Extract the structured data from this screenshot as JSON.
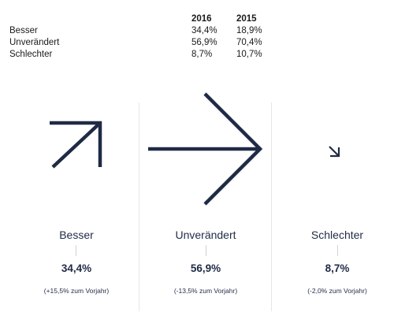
{
  "table": {
    "header": [
      "",
      "2016",
      "2015"
    ],
    "rows": [
      {
        "label": "Besser",
        "v2016": "34,4%",
        "v2015": "18,9%"
      },
      {
        "label": "Unverändert",
        "v2016": "56,9%",
        "v2015": "70,4%"
      },
      {
        "label": "Schlechter",
        "v2016": "8,7%",
        "v2015": "10,7%"
      }
    ]
  },
  "chart_data": {
    "type": "table",
    "categories": [
      "Besser",
      "Unverändert",
      "Schlechter"
    ],
    "x": [
      "2016",
      "2015"
    ],
    "series": [
      {
        "name": "2016",
        "values": [
          34.4,
          56.9,
          8.7
        ]
      },
      {
        "name": "2015",
        "values": [
          18.9,
          70.4,
          10.7
        ]
      }
    ],
    "title": "",
    "xlabel": "",
    "ylabel": ""
  },
  "panels": [
    {
      "label": "Besser",
      "value": "34,4%",
      "change": "(+15,5% zum Vorjahr)",
      "direction": "up-right",
      "share": 34.4
    },
    {
      "label": "Unverändert",
      "value": "56,9%",
      "change": "(-13,5% zum Vorjahr)",
      "direction": "right",
      "share": 56.9
    },
    {
      "label": "Schlechter",
      "value": "8,7%",
      "change": "(-2,0% zum Vorjahr)",
      "direction": "down-right",
      "share": 8.7
    }
  ],
  "colors": {
    "arrow": "#1f2b45",
    "text": "#1f2b45",
    "divider": "#e6e6e6"
  },
  "icons": [
    "arrow-up-right-icon",
    "arrow-right-icon",
    "arrow-down-right-icon"
  ]
}
